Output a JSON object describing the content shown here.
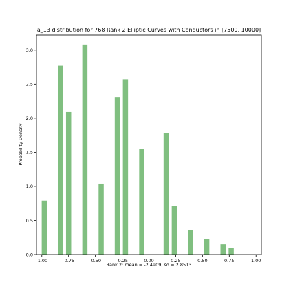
{
  "chart_data": {
    "type": "bar",
    "title": "a_13 distribution for 768 Rank 2 Elliptic Curves with Conductors in [7500, 10000]",
    "xlabel": "Rank 2: mean = -2.4909, sd = 2.8513",
    "ylabel": "Probability Density",
    "xlim": [
      -1.05,
      1.05
    ],
    "ylim": [
      0,
      3.22
    ],
    "xticks": [
      "-1.00",
      "-0.75",
      "-0.50",
      "-0.25",
      "0.00",
      "0.25",
      "0.50",
      "0.75",
      "1.00"
    ],
    "yticks": [
      "0.0",
      "0.5",
      "1.0",
      "1.5",
      "2.0",
      "2.5",
      "3.0"
    ],
    "bar_color": "#80bf80",
    "grid": false,
    "bars": [
      {
        "x": -0.977,
        "value": 0.79
      },
      {
        "x": -0.826,
        "value": 2.77
      },
      {
        "x": -0.75,
        "value": 2.09
      },
      {
        "x": -0.598,
        "value": 3.08
      },
      {
        "x": -0.446,
        "value": 1.04
      },
      {
        "x": -0.295,
        "value": 2.31
      },
      {
        "x": -0.219,
        "value": 2.57
      },
      {
        "x": -0.067,
        "value": 1.55
      },
      {
        "x": 0.161,
        "value": 1.78
      },
      {
        "x": 0.237,
        "value": 0.71
      },
      {
        "x": 0.388,
        "value": 0.36
      },
      {
        "x": 0.54,
        "value": 0.23
      },
      {
        "x": 0.692,
        "value": 0.15
      },
      {
        "x": 0.768,
        "value": 0.1
      }
    ]
  }
}
